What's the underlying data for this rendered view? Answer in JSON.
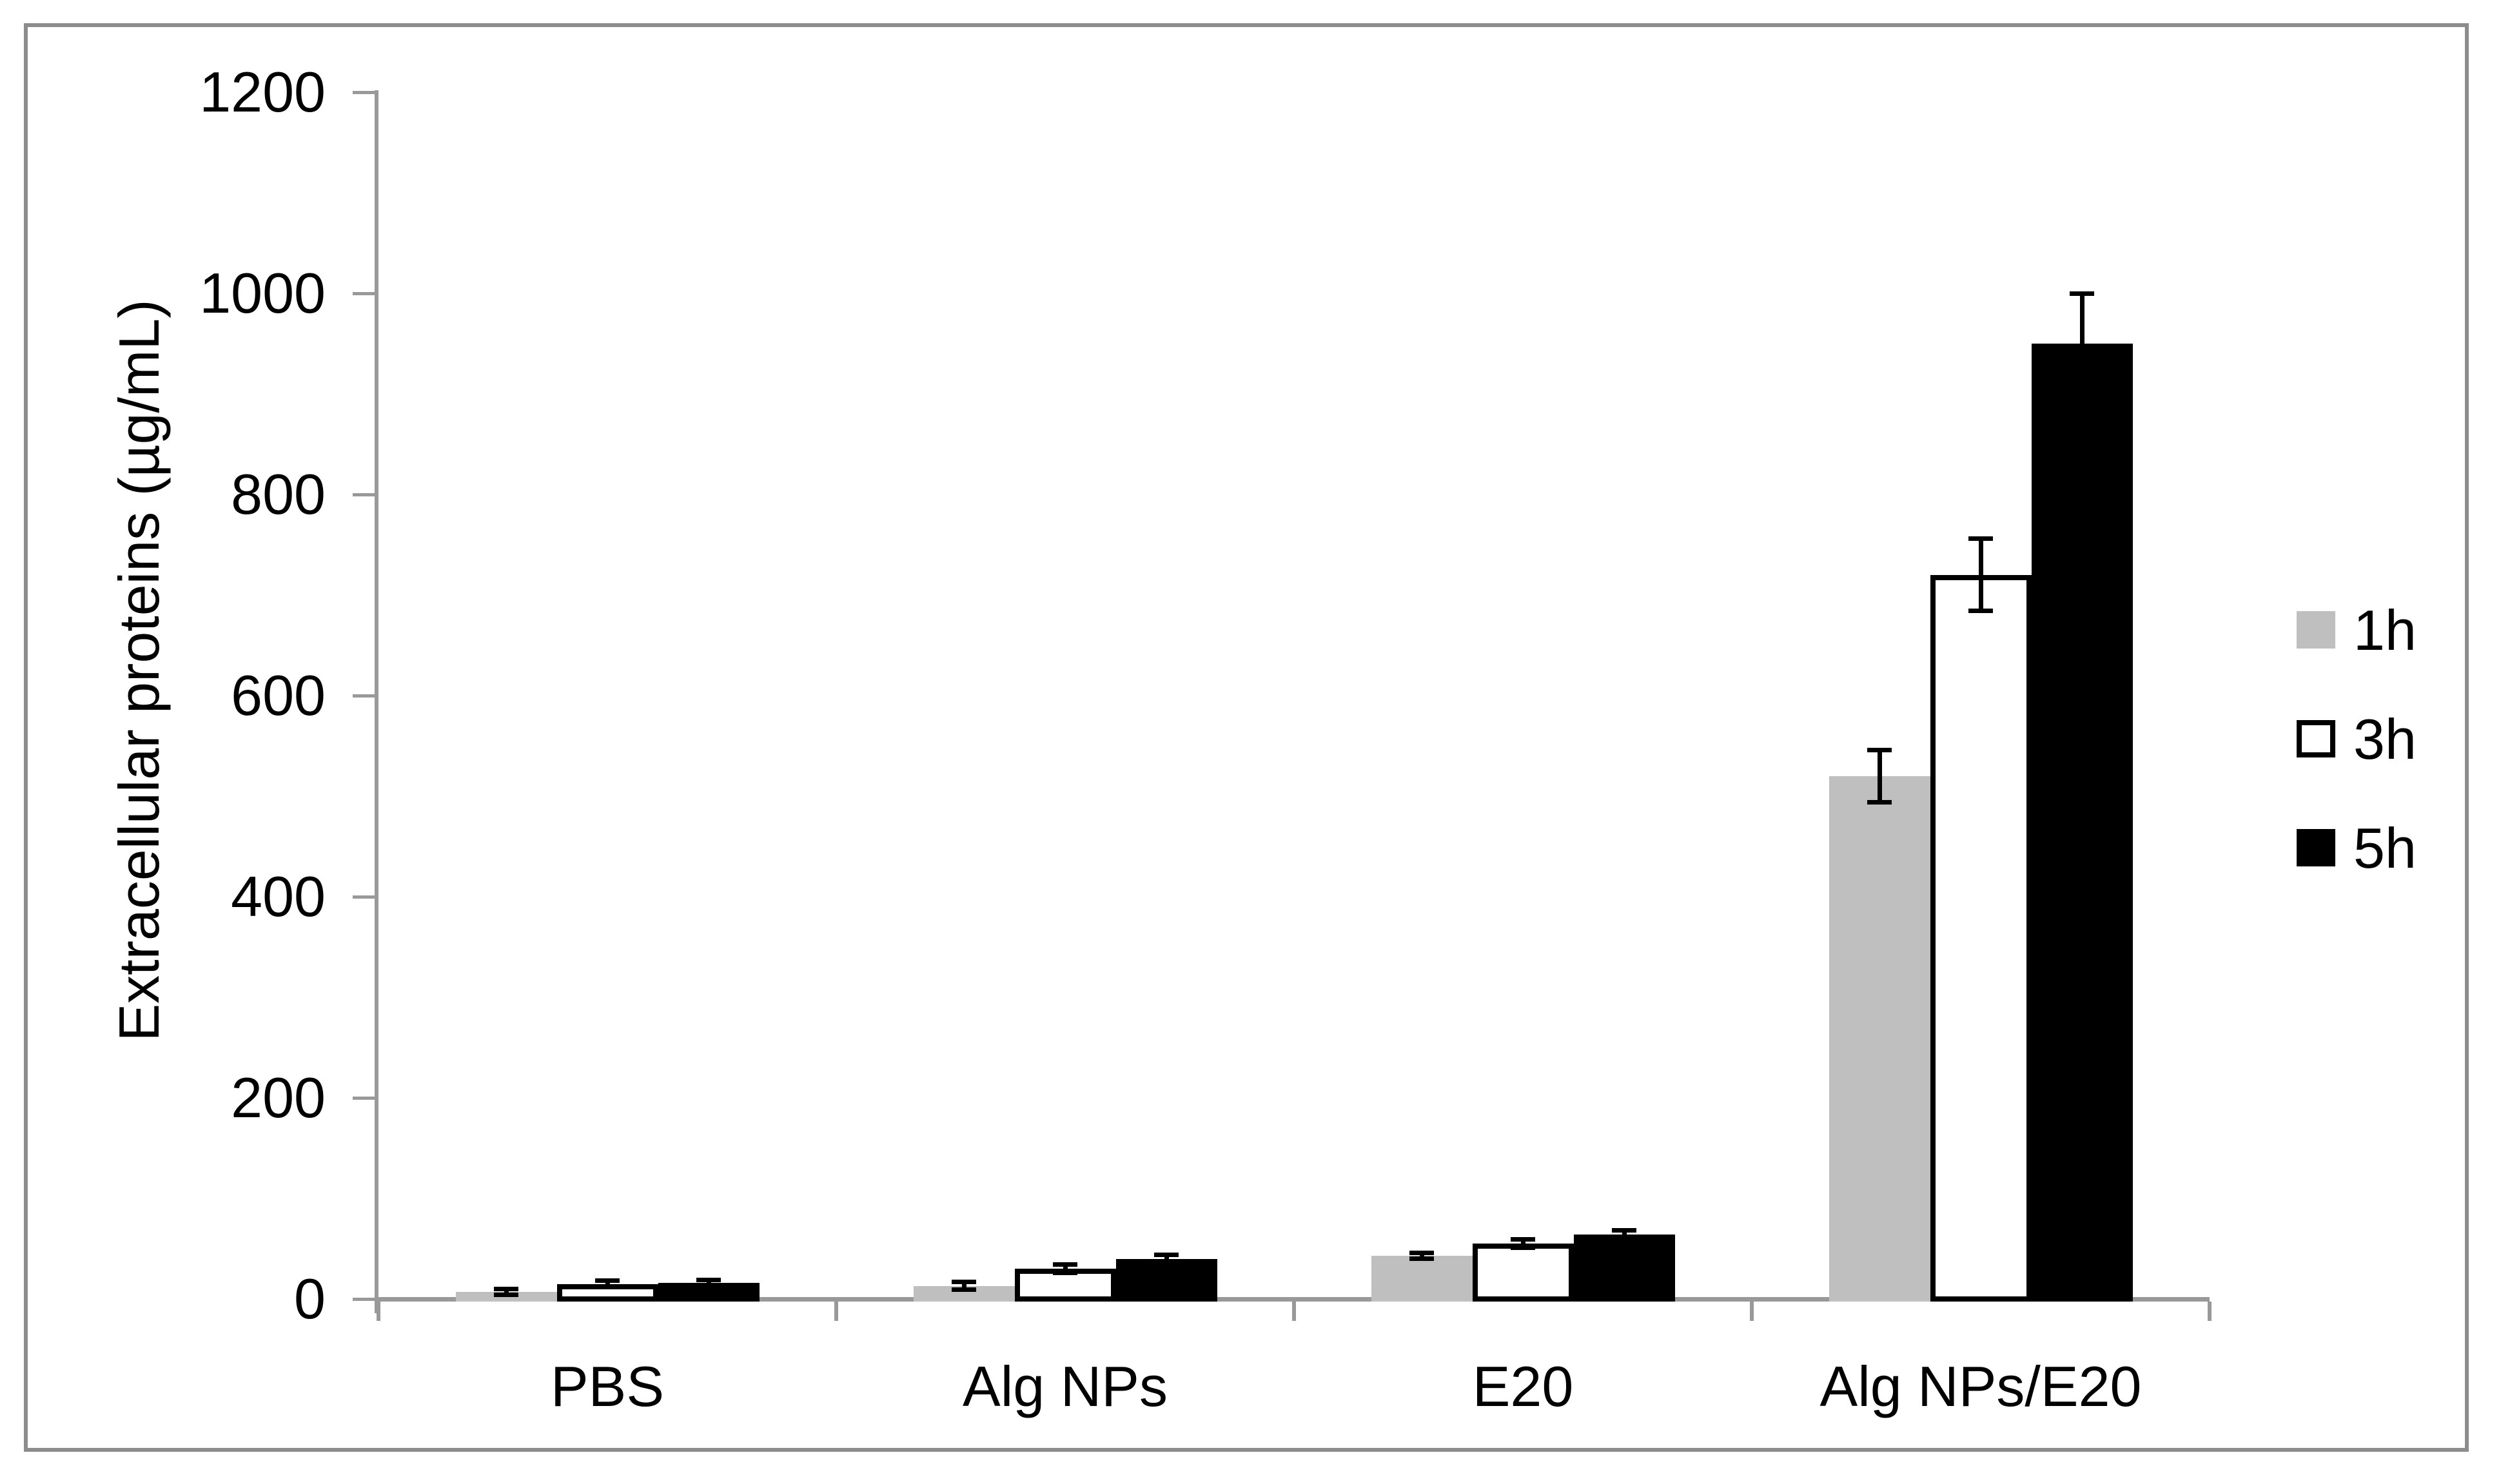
{
  "chart_data": {
    "type": "bar",
    "title": "",
    "ylabel": "Extracellular proteins (µg/mL)",
    "xlabel": "",
    "categories": [
      "PBS",
      "Alg NPs",
      "E20",
      "Alg NPs/E20"
    ],
    "series": [
      {
        "name": "1h",
        "fill": "#BFBFBF",
        "border": null,
        "values": [
          7,
          13,
          43,
          520
        ],
        "errors": [
          3,
          4,
          3,
          26
        ]
      },
      {
        "name": "3h",
        "fill": "#FFFFFF",
        "border": "#000000",
        "values": [
          15,
          30,
          55,
          720
        ],
        "errors": [
          3,
          4,
          4,
          36
        ]
      },
      {
        "name": "5h",
        "fill": "#000000",
        "border": null,
        "values": [
          16,
          40,
          64,
          950
        ],
        "errors": [
          3,
          4,
          4,
          50
        ]
      }
    ],
    "ylim": [
      0,
      1200
    ],
    "y_ticks": [
      0,
      200,
      400,
      600,
      800,
      1000,
      1200
    ],
    "grid": false,
    "error_bars": true,
    "legend_position": "right",
    "axis_color": "#999999",
    "frame_color": "#8C8C8C",
    "text_color": "#000000"
  }
}
